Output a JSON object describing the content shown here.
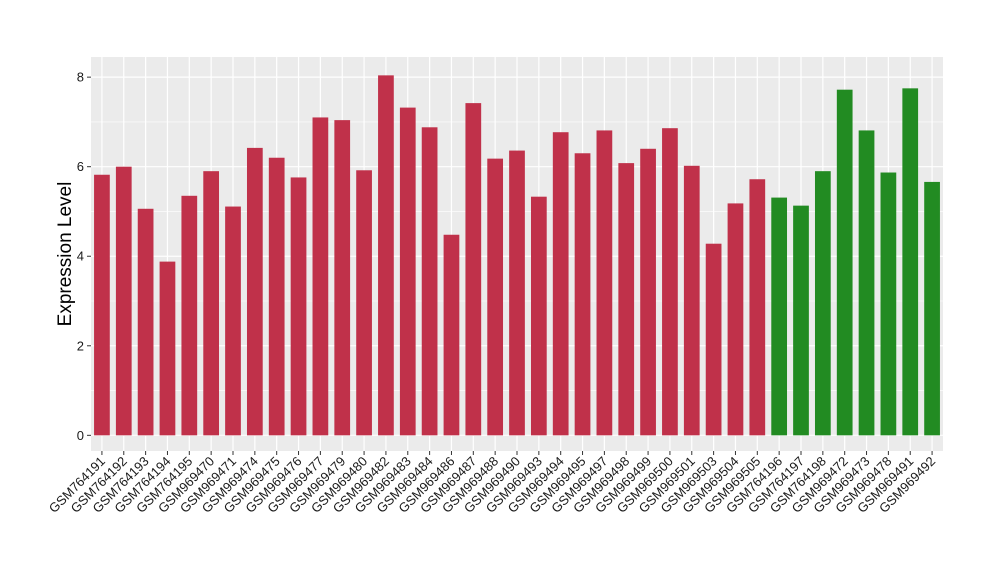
{
  "chart_data": {
    "type": "bar",
    "ylabel": "Expression Level",
    "xlabel": "",
    "ylim": [
      -0.35,
      8.45
    ],
    "yticks": [
      0,
      2,
      4,
      6,
      8
    ],
    "grid": true,
    "legend": "none",
    "categories": [
      "GSM764191",
      "GSM764192",
      "GSM764193",
      "GSM764194",
      "GSM764195",
      "GSM969470",
      "GSM969471",
      "GSM969474",
      "GSM969475",
      "GSM969476",
      "GSM969477",
      "GSM969479",
      "GSM969480",
      "GSM969482",
      "GSM969483",
      "GSM969484",
      "GSM969486",
      "GSM969487",
      "GSM969488",
      "GSM969490",
      "GSM969493",
      "GSM969494",
      "GSM969495",
      "GSM969497",
      "GSM969498",
      "GSM969499",
      "GSM969500",
      "GSM969501",
      "GSM969503",
      "GSM969504",
      "GSM969505",
      "GSM764196",
      "GSM764197",
      "GSM764198",
      "GSM969472",
      "GSM969473",
      "GSM969478",
      "GSM969491",
      "GSM969492"
    ],
    "values": [
      5.82,
      6.0,
      5.06,
      3.88,
      5.35,
      5.9,
      5.11,
      6.42,
      6.2,
      5.76,
      7.1,
      7.04,
      5.92,
      8.04,
      7.32,
      6.88,
      4.48,
      7.42,
      6.18,
      6.36,
      5.33,
      6.77,
      6.3,
      6.81,
      6.08,
      6.4,
      6.86,
      6.02,
      4.28,
      5.18,
      5.72,
      5.31,
      5.13,
      5.9,
      7.72,
      6.81,
      5.87,
      7.75,
      5.66
    ],
    "bar_colors": [
      "#C0314A",
      "#C0314A",
      "#C0314A",
      "#C0314A",
      "#C0314A",
      "#C0314A",
      "#C0314A",
      "#C0314A",
      "#C0314A",
      "#C0314A",
      "#C0314A",
      "#C0314A",
      "#C0314A",
      "#C0314A",
      "#C0314A",
      "#C0314A",
      "#C0314A",
      "#C0314A",
      "#C0314A",
      "#C0314A",
      "#C0314A",
      "#C0314A",
      "#C0314A",
      "#C0314A",
      "#C0314A",
      "#C0314A",
      "#C0314A",
      "#C0314A",
      "#C0314A",
      "#C0314A",
      "#C0314A",
      "#228B22",
      "#228B22",
      "#228B22",
      "#228B22",
      "#228B22",
      "#228B22",
      "#228B22",
      "#228B22"
    ],
    "panel_background": "#EBEBEB",
    "gridline_color": "#FFFFFF"
  }
}
